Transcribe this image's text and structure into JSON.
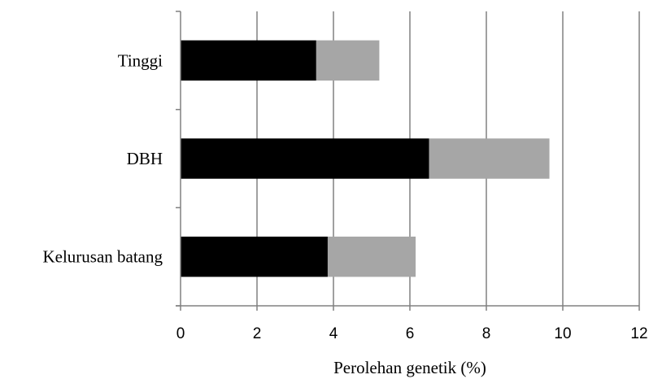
{
  "chart_data": {
    "type": "bar",
    "orientation": "horizontal",
    "stacked": true,
    "categories": [
      "Tinggi",
      "DBH",
      "Kelurusan batang"
    ],
    "series": [
      {
        "values": [
          3.55,
          6.5,
          3.85
        ],
        "color": "#000000"
      },
      {
        "values": [
          1.65,
          3.15,
          2.3
        ],
        "color": "#a6a6a6"
      }
    ],
    "xlabel": "Perolehan genetik (%)",
    "xlim": [
      0,
      12
    ],
    "xticks": [
      "0",
      "2",
      "4",
      "6",
      "8",
      "10",
      "12"
    ],
    "grid": true,
    "legend": "none"
  }
}
